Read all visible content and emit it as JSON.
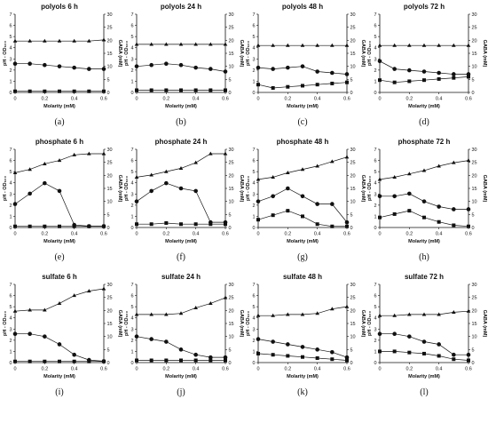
{
  "chart_data": [
    {
      "type": "line",
      "panel": "(a)",
      "title": "polyols 6 h",
      "xlabel": "Molarity (mM)",
      "ylabel_left": "pH - OD₆₀₀",
      "ylabel_right": "GABA (mM)",
      "x": [
        0,
        0.1,
        0.2,
        0.3,
        0.4,
        0.5,
        0.6
      ],
      "xticks": [
        "0",
        "0.2",
        "0.4",
        "0.6"
      ],
      "ylim_left": [
        0,
        7
      ],
      "ylim_right": [
        0,
        30
      ],
      "series": [
        {
          "marker": "triangle",
          "axis": "left",
          "values": [
            4.6,
            4.6,
            4.6,
            4.6,
            4.6,
            4.6,
            4.7
          ]
        },
        {
          "marker": "circle",
          "axis": "right",
          "values": [
            11,
            11,
            10.5,
            10,
            9.5,
            9,
            9
          ]
        },
        {
          "marker": "square",
          "axis": "left",
          "values": [
            0.1,
            0.1,
            0.1,
            0.1,
            0.1,
            0.1,
            0.1
          ]
        }
      ]
    },
    {
      "type": "line",
      "panel": "(b)",
      "title": "polyols 24 h",
      "xlabel": "Molarity (mM)",
      "ylabel_left": "pH - OD₆₀₀",
      "ylabel_right": "GABA (mM)",
      "x": [
        0,
        0.1,
        0.2,
        0.3,
        0.4,
        0.5,
        0.6
      ],
      "xticks": [
        "0",
        "0.2",
        "0.4",
        "0.6"
      ],
      "ylim_left": [
        0,
        7
      ],
      "ylim_right": [
        0,
        30
      ],
      "series": [
        {
          "marker": "triangle",
          "axis": "left",
          "values": [
            4.3,
            4.3,
            4.3,
            4.3,
            4.3,
            4.3,
            4.3
          ]
        },
        {
          "marker": "circle",
          "axis": "right",
          "values": [
            10,
            10.5,
            11,
            10.5,
            9.5,
            9,
            8
          ]
        },
        {
          "marker": "square",
          "axis": "left",
          "values": [
            0.2,
            0.2,
            0.2,
            0.2,
            0.2,
            0.2,
            0.2
          ]
        }
      ]
    },
    {
      "type": "line",
      "panel": "(c)",
      "title": "polyols 48 h",
      "xlabel": "Molarity (mM)",
      "ylabel_left": "pH - OD₆₀₀",
      "ylabel_right": "GABA (mM)",
      "x": [
        0,
        0.1,
        0.2,
        0.3,
        0.4,
        0.5,
        0.6
      ],
      "xticks": [
        "0",
        "0.2",
        "0.4",
        "0.6"
      ],
      "ylim_left": [
        0,
        7
      ],
      "ylim_right": [
        0,
        30
      ],
      "series": [
        {
          "marker": "triangle",
          "axis": "left",
          "values": [
            4.2,
            4.2,
            4.2,
            4.2,
            4.2,
            4.2,
            4.2
          ]
        },
        {
          "marker": "circle",
          "axis": "right",
          "values": [
            9.5,
            9,
            9.5,
            10,
            8,
            7.5,
            7
          ]
        },
        {
          "marker": "square",
          "axis": "left",
          "values": [
            0.7,
            0.4,
            0.5,
            0.6,
            0.7,
            0.8,
            0.9
          ]
        }
      ]
    },
    {
      "type": "line",
      "panel": "(d)",
      "title": "polyols 72 h",
      "xlabel": "Molarity (mM)",
      "ylabel_left": "pH - OD₆₀₀",
      "ylabel_right": "GABA (mM)",
      "x": [
        0,
        0.1,
        0.2,
        0.3,
        0.4,
        0.5,
        0.6
      ],
      "xticks": [
        "0",
        "0.2",
        "0.4",
        "0.6"
      ],
      "ylim_left": [
        0,
        7
      ],
      "ylim_right": [
        0,
        30
      ],
      "series": [
        {
          "marker": "triangle",
          "axis": "left",
          "values": [
            4.2,
            4.2,
            4.2,
            4.2,
            4.2,
            4.2,
            4.2
          ]
        },
        {
          "marker": "circle",
          "axis": "right",
          "values": [
            12,
            9,
            8.5,
            8,
            7.5,
            7,
            7
          ]
        },
        {
          "marker": "square",
          "axis": "left",
          "values": [
            1.1,
            0.9,
            1.0,
            1.1,
            1.2,
            1.3,
            1.4
          ]
        }
      ]
    },
    {
      "type": "line",
      "panel": "(e)",
      "title": "phosphate 6 h",
      "xlabel": "Molarity (mM)",
      "ylabel_left": "pH - OD₆₀₀",
      "ylabel_right": "GABA (mM)",
      "x": [
        0,
        0.1,
        0.2,
        0.3,
        0.4,
        0.5,
        0.6
      ],
      "xticks": [
        "0",
        "0.2",
        "0.4",
        "0.6"
      ],
      "ylim_left": [
        0,
        7
      ],
      "ylim_right": [
        0,
        30
      ],
      "series": [
        {
          "marker": "triangle",
          "axis": "left",
          "values": [
            4.9,
            5.2,
            5.7,
            6.0,
            6.5,
            6.6,
            6.6
          ]
        },
        {
          "marker": "circle",
          "axis": "right",
          "values": [
            9,
            13,
            17,
            14,
            1,
            0.5,
            0.5
          ]
        },
        {
          "marker": "square",
          "axis": "left",
          "values": [
            0.1,
            0.1,
            0.1,
            0.1,
            0.1,
            0.1,
            0.1
          ]
        }
      ]
    },
    {
      "type": "line",
      "panel": "(f)",
      "title": "phosphate 24 h",
      "xlabel": "Molarity (mM)",
      "ylabel_left": "pH - OD₆₀₀",
      "ylabel_right": "GABA (mM)",
      "x": [
        0,
        0.1,
        0.2,
        0.3,
        0.4,
        0.5,
        0.6
      ],
      "xticks": [
        "0",
        "0.2",
        "0.4",
        "0.6"
      ],
      "ylim_left": [
        0,
        7
      ],
      "ylim_right": [
        0,
        30
      ],
      "series": [
        {
          "marker": "triangle",
          "axis": "left",
          "values": [
            4.5,
            4.7,
            5.0,
            5.3,
            5.8,
            6.6,
            6.6
          ]
        },
        {
          "marker": "circle",
          "axis": "right",
          "values": [
            10,
            14,
            17,
            15,
            14,
            2,
            2
          ]
        },
        {
          "marker": "square",
          "axis": "left",
          "values": [
            0.3,
            0.3,
            0.4,
            0.3,
            0.3,
            0.3,
            0.3
          ]
        }
      ]
    },
    {
      "type": "line",
      "panel": "(g)",
      "title": "phosphate 48 h",
      "xlabel": "Molarity (mM)",
      "ylabel_left": "pH - OD₆₀₀",
      "ylabel_right": "GABA (mM)",
      "x": [
        0,
        0.1,
        0.2,
        0.3,
        0.4,
        0.5,
        0.6
      ],
      "xticks": [
        "0",
        "0.2",
        "0.4",
        "0.6"
      ],
      "ylim_left": [
        0,
        7
      ],
      "ylim_right": [
        0,
        30
      ],
      "series": [
        {
          "marker": "triangle",
          "axis": "left",
          "values": [
            4.3,
            4.5,
            4.9,
            5.2,
            5.5,
            5.9,
            6.3
          ]
        },
        {
          "marker": "circle",
          "axis": "right",
          "values": [
            10,
            12,
            15,
            12,
            9,
            9,
            2
          ]
        },
        {
          "marker": "square",
          "axis": "left",
          "values": [
            0.7,
            1.1,
            1.5,
            1.0,
            0.3,
            0.1,
            0.1
          ]
        }
      ]
    },
    {
      "type": "line",
      "panel": "(h)",
      "title": "phosphate 72 h",
      "xlabel": "Molarity (mM)",
      "ylabel_left": "pH - OD₆₀₀",
      "ylabel_right": "GABA (mM)",
      "x": [
        0,
        0.1,
        0.2,
        0.3,
        0.4,
        0.5,
        0.6
      ],
      "xticks": [
        "0",
        "0.2",
        "0.4",
        "0.6"
      ],
      "ylim_left": [
        0,
        7
      ],
      "ylim_right": [
        0,
        30
      ],
      "series": [
        {
          "marker": "triangle",
          "axis": "left",
          "values": [
            4.3,
            4.5,
            4.8,
            5.1,
            5.5,
            5.8,
            6.0
          ]
        },
        {
          "marker": "circle",
          "axis": "right",
          "values": [
            12,
            12,
            13,
            10,
            8,
            7,
            7
          ]
        },
        {
          "marker": "square",
          "axis": "left",
          "values": [
            0.9,
            1.2,
            1.5,
            0.9,
            0.5,
            0.2,
            0.1
          ]
        }
      ]
    },
    {
      "type": "line",
      "panel": "(i)",
      "title": "sulfate 6 h",
      "xlabel": "Molarity (mM)",
      "ylabel_left": "pH - OD₆₀₀",
      "ylabel_right": "GABA (mM)",
      "x": [
        0,
        0.1,
        0.2,
        0.3,
        0.4,
        0.5,
        0.6
      ],
      "xticks": [
        "0",
        "0.2",
        "0.4",
        "0.6"
      ],
      "ylim_left": [
        0,
        7
      ],
      "ylim_right": [
        0,
        30
      ],
      "series": [
        {
          "marker": "triangle",
          "axis": "left",
          "values": [
            4.6,
            4.7,
            4.7,
            5.3,
            6.0,
            6.4,
            6.6
          ]
        },
        {
          "marker": "circle",
          "axis": "right",
          "values": [
            11,
            11,
            10,
            7,
            3,
            1,
            0.5
          ]
        },
        {
          "marker": "square",
          "axis": "left",
          "values": [
            0.1,
            0.1,
            0.1,
            0.1,
            0.1,
            0.1,
            0.1
          ]
        }
      ]
    },
    {
      "type": "line",
      "panel": "(j)",
      "title": "sulfate 24 h",
      "xlabel": "Molarity (mM)",
      "ylabel_left": "pH - OD₆₀₀",
      "ylabel_right": "GABA (mM)",
      "x": [
        0,
        0.1,
        0.2,
        0.3,
        0.4,
        0.5,
        0.6
      ],
      "xticks": [
        "0",
        "0.2",
        "0.4",
        "0.6"
      ],
      "ylim_left": [
        0,
        7
      ],
      "ylim_right": [
        0,
        30
      ],
      "series": [
        {
          "marker": "triangle",
          "axis": "left",
          "values": [
            4.3,
            4.3,
            4.3,
            4.4,
            4.9,
            5.3,
            5.8
          ]
        },
        {
          "marker": "circle",
          "axis": "right",
          "values": [
            10,
            9,
            8,
            5,
            3,
            2,
            2
          ]
        },
        {
          "marker": "square",
          "axis": "left",
          "values": [
            0.2,
            0.2,
            0.2,
            0.2,
            0.2,
            0.2,
            0.2
          ]
        }
      ]
    },
    {
      "type": "line",
      "panel": "(k)",
      "title": "sulfate 48 h",
      "xlabel": "Molarity (mM)",
      "ylabel_left": "pH - OD₆₀₀",
      "ylabel_right": "GABA (mM)",
      "x": [
        0,
        0.1,
        0.2,
        0.3,
        0.4,
        0.5,
        0.6
      ],
      "xticks": [
        "0",
        "0.2",
        "0.4",
        "0.6"
      ],
      "ylim_left": [
        0,
        7
      ],
      "ylim_right": [
        0,
        30
      ],
      "series": [
        {
          "marker": "triangle",
          "axis": "left",
          "values": [
            4.2,
            4.2,
            4.3,
            4.3,
            4.4,
            4.8,
            5.0
          ]
        },
        {
          "marker": "circle",
          "axis": "right",
          "values": [
            9,
            8,
            7,
            6,
            5,
            4,
            2
          ]
        },
        {
          "marker": "square",
          "axis": "left",
          "values": [
            0.8,
            0.7,
            0.6,
            0.5,
            0.4,
            0.3,
            0.2
          ]
        }
      ]
    },
    {
      "type": "line",
      "panel": "(l)",
      "title": "sulfate 72 h",
      "xlabel": "Molarity (mM)",
      "ylabel_left": "pH - OD₆₀₀",
      "ylabel_right": "GABA (mM)",
      "x": [
        0,
        0.1,
        0.2,
        0.3,
        0.4,
        0.5,
        0.6
      ],
      "xticks": [
        "0",
        "0.2",
        "0.4",
        "0.6"
      ],
      "ylim_left": [
        0,
        7
      ],
      "ylim_right": [
        0,
        30
      ],
      "series": [
        {
          "marker": "triangle",
          "axis": "left",
          "values": [
            4.2,
            4.2,
            4.3,
            4.3,
            4.3,
            4.5,
            4.6
          ]
        },
        {
          "marker": "circle",
          "axis": "right",
          "values": [
            11,
            11,
            10,
            8,
            7,
            3,
            3
          ]
        },
        {
          "marker": "square",
          "axis": "left",
          "values": [
            1.0,
            1.0,
            0.9,
            0.8,
            0.6,
            0.3,
            0.2
          ]
        }
      ]
    }
  ],
  "colors": {
    "marks": "#111111",
    "axes": "#111111",
    "background": "#ffffff"
  }
}
